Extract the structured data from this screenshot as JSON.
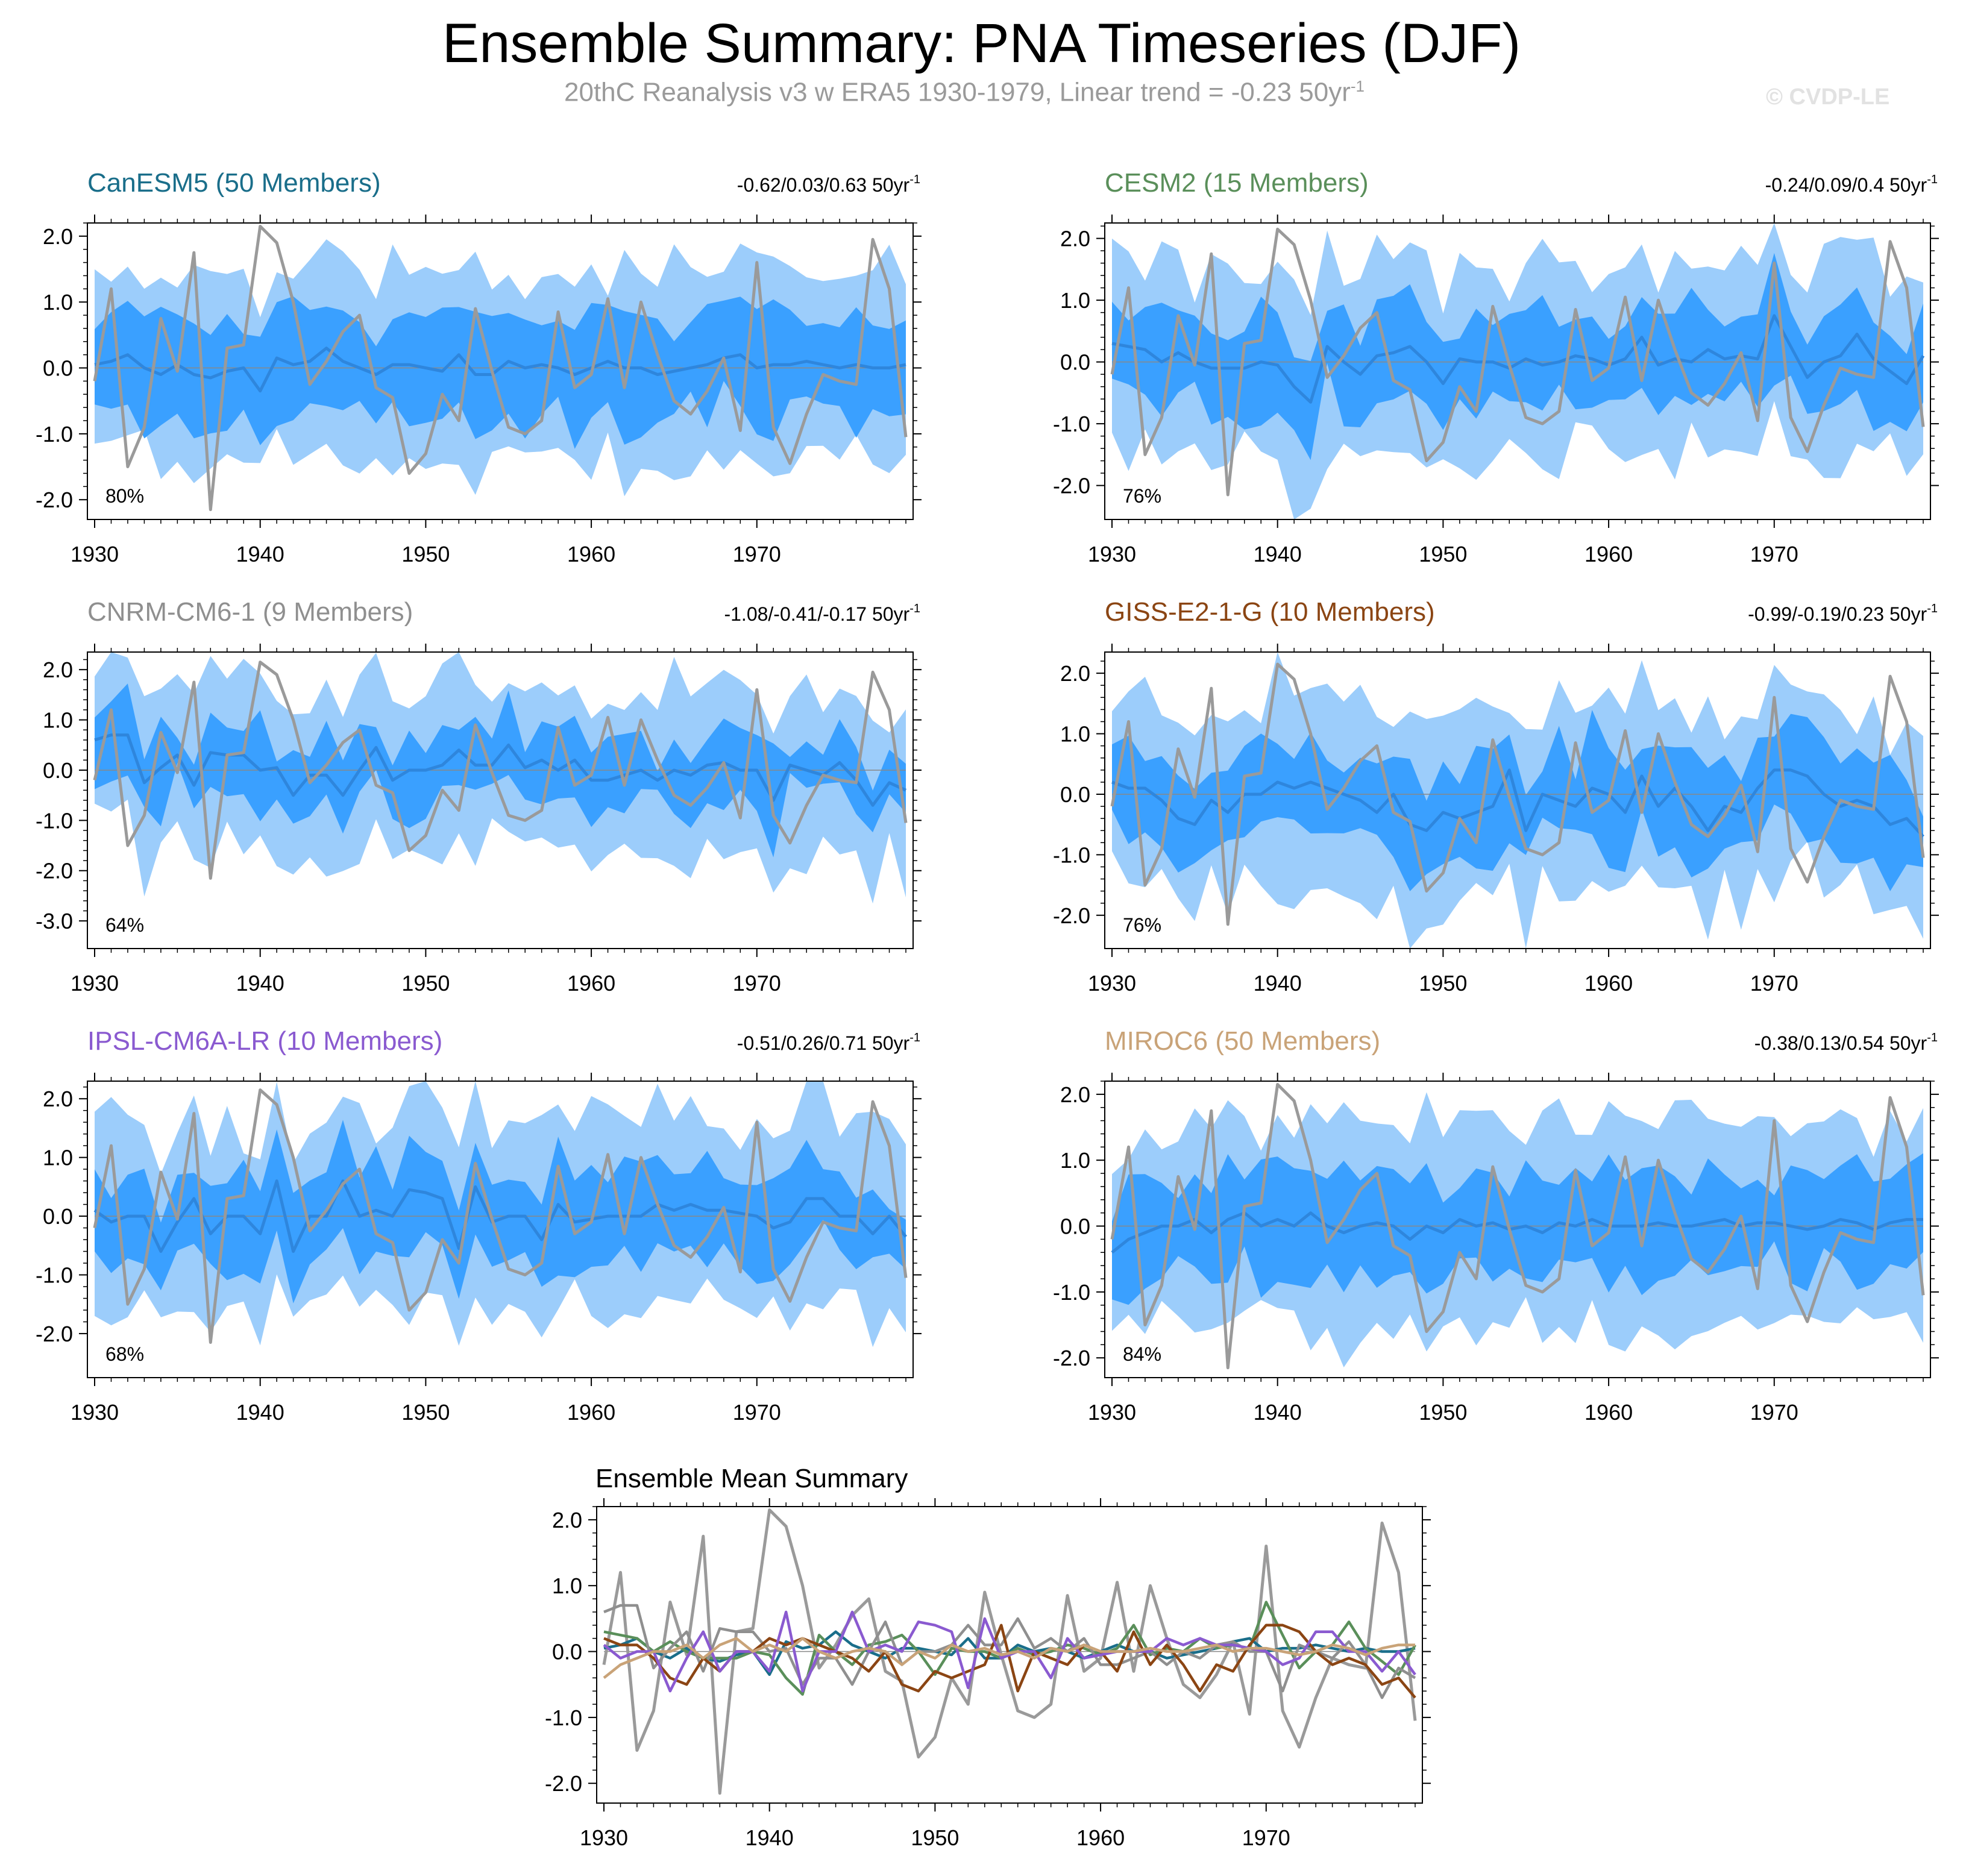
{
  "title": "Ensemble Summary: PNA Timeseries (DJF)",
  "subtitle": {
    "text": "20thC Reanalysis v3 w ERA5 1930-1979, Linear trend = -0.23 50yr",
    "sup": "-1"
  },
  "credit": "© CVDP-LE",
  "colors": {
    "outer_band": "#9ccdfb",
    "inner_band": "#3aa0ff",
    "ens_mean": "#2e86dd",
    "observed": "#9a9a9a",
    "zero_line": "#888888"
  },
  "observed": {
    "name": "20thC Reanalysis v3 w ERA5",
    "values": [
      -0.2,
      1.2,
      -1.5,
      -0.9,
      0.75,
      -0.05,
      1.75,
      -2.15,
      0.3,
      0.35,
      2.15,
      1.9,
      1.0,
      -0.25,
      0.1,
      0.55,
      0.8,
      -0.3,
      -0.45,
      -1.6,
      -1.3,
      -0.4,
      -0.8,
      0.9,
      -0.05,
      -0.9,
      -1.0,
      -0.8,
      0.85,
      -0.3,
      -0.1,
      1.05,
      -0.3,
      1.0,
      0.2,
      -0.5,
      -0.7,
      -0.35,
      0.15,
      -0.95,
      1.6,
      -0.9,
      -1.45,
      -0.7,
      -0.1,
      -0.2,
      -0.25,
      1.95,
      1.2,
      -1.05
    ]
  },
  "chart_data": [
    {
      "type": "area",
      "model": "CanESM5",
      "title": "CanESM5 (50 Members)",
      "title_color": "#1a6e8a",
      "trend": "-0.62/0.03/0.63 50yr",
      "trend_sup": "-1",
      "percent": "80%",
      "x_start": 1930,
      "x_end": 1979,
      "xticks": [
        1930,
        1940,
        1950,
        1960,
        1970
      ],
      "yticks": [
        -2.0,
        -1.0,
        0.0,
        1.0,
        2.0
      ],
      "ylim": [
        -2.3,
        2.2
      ],
      "seed": 11,
      "amp": 0.4,
      "inner": 0.75,
      "outer": 1.3,
      "mean": [
        0.05,
        0.1,
        0.2,
        0.0,
        -0.1,
        0.05,
        -0.1,
        -0.15,
        -0.05,
        0.0,
        -0.35,
        0.15,
        0.05,
        0.1,
        0.3,
        0.1,
        0.0,
        -0.1,
        0.05,
        0.05,
        0.0,
        -0.05,
        0.2,
        -0.1,
        -0.1,
        0.1,
        0.0,
        0.05,
        0.0,
        -0.1,
        0.0,
        0.1,
        0.0,
        0.0,
        -0.1,
        -0.05,
        0.0,
        0.05,
        0.15,
        0.2,
        0.0,
        0.05,
        0.05,
        0.1,
        0.05,
        0.0,
        0.05,
        0.0,
        0.0,
        0.05
      ]
    },
    {
      "type": "area",
      "model": "CESM2",
      "title": "CESM2 (15 Members)",
      "title_color": "#5a8f5a",
      "trend": "-0.24/0.09/0.4 50yr",
      "trend_sup": "-1",
      "percent": "76%",
      "x_start": 1930,
      "x_end": 1979,
      "xticks": [
        1930,
        1940,
        1950,
        1960,
        1970
      ],
      "yticks": [
        -2.0,
        -1.0,
        0.0,
        1.0,
        2.0
      ],
      "ylim": [
        -2.55,
        2.25
      ],
      "seed": 23,
      "amp": 0.55,
      "inner": 0.7,
      "outer": 1.35,
      "mean": [
        0.3,
        0.25,
        0.2,
        0.0,
        0.15,
        0.0,
        -0.1,
        -0.1,
        -0.1,
        0.0,
        -0.05,
        -0.4,
        -0.65,
        0.25,
        0.0,
        -0.2,
        0.1,
        0.15,
        0.25,
        0.0,
        -0.35,
        0.05,
        0.0,
        0.0,
        -0.1,
        0.05,
        -0.05,
        0.0,
        0.1,
        0.05,
        -0.05,
        0.05,
        0.4,
        -0.05,
        0.05,
        0.0,
        0.2,
        0.05,
        0.1,
        0.05,
        0.75,
        0.25,
        -0.25,
        0.0,
        0.1,
        0.45,
        0.05,
        -0.15,
        -0.35,
        0.1
      ]
    },
    {
      "type": "area",
      "model": "CNRM-CM6-1",
      "title": "CNRM-CM6-1 (9 Members)",
      "title_color": "#8f8f8f",
      "trend": "-1.08/-0.41/-0.17 50yr",
      "trend_sup": "-1",
      "percent": "64%",
      "x_start": 1930,
      "x_end": 1979,
      "xticks": [
        1930,
        1940,
        1950,
        1960,
        1970
      ],
      "yticks": [
        -3.0,
        -2.0,
        -1.0,
        0.0,
        1.0,
        2.0
      ],
      "ylim": [
        -3.55,
        2.35
      ],
      "seed": 37,
      "amp": 0.7,
      "inner": 0.65,
      "outer": 1.45,
      "mean": [
        0.6,
        0.7,
        0.7,
        -0.25,
        0.05,
        0.3,
        -0.3,
        0.35,
        0.3,
        0.3,
        0.0,
        0.05,
        -0.5,
        -0.1,
        -0.1,
        -0.5,
        0.0,
        0.45,
        -0.2,
        0.0,
        0.0,
        0.1,
        0.4,
        0.1,
        0.1,
        0.5,
        0.05,
        0.2,
        0.0,
        0.2,
        -0.2,
        -0.2,
        -0.1,
        0.0,
        -0.2,
        0.0,
        -0.1,
        0.1,
        0.15,
        0.0,
        0.0,
        -0.6,
        0.1,
        0.0,
        -0.1,
        0.15,
        -0.2,
        -0.7,
        -0.25,
        -0.4
      ]
    },
    {
      "type": "area",
      "model": "GISS-E2-1-G",
      "title": "GISS-E2-1-G (10 Members)",
      "title_color": "#8b4513",
      "trend": "-0.99/-0.19/0.23 50yr",
      "trend_sup": "-1",
      "percent": "76%",
      "x_start": 1930,
      "x_end": 1979,
      "xticks": [
        1930,
        1940,
        1950,
        1960,
        1970
      ],
      "yticks": [
        -2.0,
        -1.0,
        0.0,
        1.0,
        2.0
      ],
      "ylim": [
        -2.55,
        2.35
      ],
      "seed": 53,
      "amp": 0.6,
      "inner": 0.7,
      "outer": 1.4,
      "mean": [
        0.2,
        0.1,
        0.1,
        -0.1,
        -0.4,
        -0.5,
        -0.1,
        -0.3,
        0.0,
        0.0,
        0.2,
        0.1,
        0.2,
        0.1,
        0.0,
        -0.1,
        -0.3,
        0.0,
        -0.5,
        -0.6,
        -0.3,
        -0.4,
        -0.3,
        -0.2,
        0.4,
        -0.6,
        0.0,
        -0.1,
        -0.2,
        0.1,
        0.0,
        -0.3,
        0.3,
        -0.2,
        0.1,
        -0.2,
        -0.6,
        -0.2,
        -0.3,
        0.1,
        0.4,
        0.4,
        0.3,
        0.0,
        -0.2,
        -0.1,
        -0.2,
        -0.5,
        -0.4,
        -0.7
      ]
    },
    {
      "type": "area",
      "model": "IPSL-CM6A-LR",
      "title": "IPSL-CM6A-LR (10 Members)",
      "title_color": "#8a5ad0",
      "trend": "-0.51/0.26/0.71 50yr",
      "trend_sup": "-1",
      "percent": "68%",
      "x_start": 1930,
      "x_end": 1979,
      "xticks": [
        1930,
        1940,
        1950,
        1960,
        1970
      ],
      "yticks": [
        -2.0,
        -1.0,
        0.0,
        1.0,
        2.0
      ],
      "ylim": [
        -2.75,
        2.3
      ],
      "seed": 71,
      "amp": 0.6,
      "inner": 0.7,
      "outer": 1.45,
      "mean": [
        0.1,
        -0.1,
        0.0,
        0.0,
        -0.6,
        -0.1,
        0.3,
        -0.3,
        0.0,
        0.0,
        -0.3,
        0.6,
        -0.6,
        0.0,
        0.0,
        0.6,
        0.0,
        0.1,
        0.0,
        0.45,
        0.4,
        0.3,
        -0.55,
        0.5,
        -0.1,
        0.0,
        0.0,
        -0.4,
        0.2,
        -0.1,
        -0.05,
        0.0,
        0.0,
        0.0,
        0.2,
        0.1,
        0.2,
        0.1,
        0.1,
        0.05,
        0.0,
        -0.2,
        -0.1,
        0.3,
        0.3,
        0.0,
        0.0,
        -0.3,
        0.0,
        -0.35
      ]
    },
    {
      "type": "area",
      "model": "MIROC6",
      "title": "MIROC6 (50 Members)",
      "title_color": "#c9a378",
      "trend": "-0.38/0.13/0.54 50yr",
      "trend_sup": "-1",
      "percent": "84%",
      "x_start": 1930,
      "x_end": 1979,
      "xticks": [
        1930,
        1940,
        1950,
        1960,
        1970
      ],
      "yticks": [
        -2.0,
        -1.0,
        0.0,
        1.0,
        2.0
      ],
      "ylim": [
        -2.3,
        2.2
      ],
      "seed": 97,
      "amp": 0.4,
      "inner": 0.7,
      "outer": 1.35,
      "mean": [
        -0.4,
        -0.2,
        -0.1,
        0.0,
        0.0,
        0.1,
        -0.1,
        0.1,
        0.2,
        0.0,
        0.1,
        0.0,
        0.2,
        0.0,
        -0.1,
        0.0,
        0.05,
        0.0,
        -0.2,
        0.0,
        -0.1,
        0.1,
        0.0,
        0.05,
        -0.05,
        0.0,
        -0.1,
        0.05,
        0.0,
        0.1,
        0.0,
        0.0,
        0.0,
        0.05,
        0.0,
        0.0,
        0.05,
        0.1,
        0.0,
        0.05,
        0.05,
        0.0,
        -0.05,
        0.0,
        0.1,
        0.05,
        -0.05,
        0.05,
        0.1,
        0.1
      ]
    },
    {
      "type": "line",
      "title": "Ensemble Mean Summary",
      "x_start": 1930,
      "x_end": 1979,
      "xticks": [
        1930,
        1940,
        1950,
        1960,
        1970
      ],
      "yticks": [
        -2.0,
        -1.0,
        0.0,
        1.0,
        2.0
      ],
      "ylim": [
        -2.3,
        2.2
      ],
      "series": [
        {
          "name": "20thC Reanalysis v3 w ERA5",
          "color": "#9a9a9a",
          "source": "observed"
        },
        {
          "name": "CanESM5",
          "color": "#1a6e8a",
          "source": "CanESM5"
        },
        {
          "name": "CESM2",
          "color": "#5a8f5a",
          "source": "CESM2"
        },
        {
          "name": "CNRM-CM6-1",
          "color": "#8f8f8f",
          "source": "CNRM-CM6-1"
        },
        {
          "name": "GISS-E2-1-G",
          "color": "#8b4513",
          "source": "GISS-E2-1-G"
        },
        {
          "name": "IPSL-CM6A-LR",
          "color": "#8a5ad0",
          "source": "IPSL-CM6A-LR"
        },
        {
          "name": "MIROC6",
          "color": "#c9a378",
          "source": "MIROC6"
        }
      ]
    }
  ]
}
